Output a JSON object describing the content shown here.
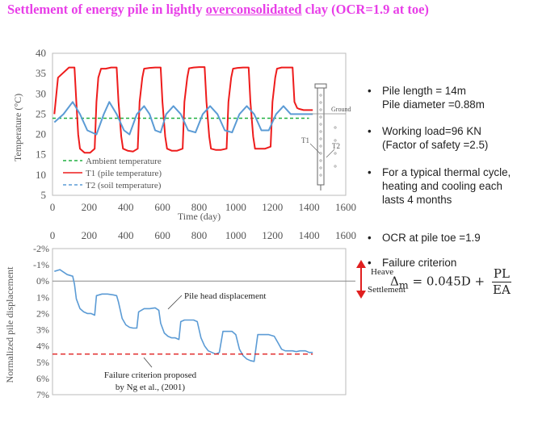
{
  "page": {
    "title_part1": "Settlement  of energy pile in lightly ",
    "title_underlined": "overconsolidated",
    "title_part2": " clay (OCR=1.9 at toe)",
    "title_color": "#e83ee8"
  },
  "bullets": [
    {
      "lines": [
        "Pile length = 14m",
        "Pile diameter =0.88m"
      ]
    },
    {
      "lines": [
        "Working load=96 KN",
        "(Factor of safety =2.5)"
      ]
    },
    {
      "lines": [
        "For a typical thermal cycle,",
        "heating and cooling each",
        "lasts 4 months"
      ]
    },
    {
      "lines": [
        "OCR at pile toe =1.9"
      ]
    },
    {
      "lines": [
        "Failure criterion"
      ]
    }
  ],
  "formula": {
    "lhs": "Δ",
    "sub": "m",
    "mid": "= 0.045D +",
    "num": "PL",
    "den": "EA"
  },
  "chart_data": [
    {
      "type": "line",
      "xlabel": "Time (day)",
      "ylabel": "Temperature (°C)",
      "xlim": [
        0,
        1600
      ],
      "ylim": [
        5,
        40
      ],
      "xticks": [
        "0",
        "200",
        "400",
        "600",
        "800",
        "1000",
        "1200",
        "1400",
        "1600"
      ],
      "yticks": [
        "5",
        "10",
        "15",
        "20",
        "25",
        "30",
        "35",
        "40"
      ],
      "legend_position": "bottom-left",
      "series": [
        {
          "name": "Ambient temperature",
          "color": "#20b040",
          "dash": "4,3",
          "x": [
            0,
            1400
          ],
          "y": [
            24,
            24
          ]
        },
        {
          "name": "T1 (pile temperature)",
          "color": "#ee1c1c",
          "dash": "",
          "x": [
            10,
            30,
            90,
            120,
            130,
            140,
            150,
            175,
            205,
            230,
            240,
            250,
            265,
            290,
            320,
            350,
            360,
            375,
            385,
            410,
            440,
            465,
            475,
            490,
            500,
            530,
            560,
            590,
            600,
            615,
            625,
            650,
            680,
            710,
            720,
            735,
            745,
            770,
            800,
            830,
            840,
            855,
            865,
            890,
            920,
            950,
            960,
            975,
            985,
            1010,
            1040,
            1070,
            1080,
            1095,
            1105,
            1130,
            1160,
            1190,
            1200,
            1215,
            1225,
            1250,
            1280,
            1310,
            1320,
            1335,
            1345,
            1370,
            1400,
            1420
          ],
          "y": [
            25,
            34,
            36.5,
            36.5,
            28,
            20,
            16.5,
            15.5,
            15.5,
            16.5,
            28,
            34,
            36.2,
            36.2,
            36.5,
            36.5,
            28,
            19.5,
            16.5,
            16,
            15.8,
            16.5,
            28,
            34,
            36.2,
            36.4,
            36.5,
            36.5,
            28,
            19.5,
            16.5,
            16,
            16,
            16.5,
            28,
            34,
            36.3,
            36.5,
            36.6,
            36.6,
            28,
            19.5,
            16.5,
            16.2,
            16.2,
            16.5,
            28,
            34,
            36.2,
            36.4,
            36.5,
            36.5,
            28,
            19.5,
            16.5,
            16.5,
            16.5,
            17,
            28,
            34,
            36.2,
            36.5,
            36.5,
            36.5,
            28,
            26.5,
            26.3,
            26,
            26,
            26
          ]
        },
        {
          "name": "T2 (soil temperature)",
          "color": "#5b9bd5",
          "dash": "",
          "x": [
            10,
            60,
            110,
            150,
            190,
            240,
            280,
            310,
            350,
            390,
            420,
            460,
            500,
            530,
            560,
            590,
            620,
            660,
            700,
            740,
            780,
            820,
            860,
            900,
            940,
            980,
            1020,
            1060,
            1100,
            1140,
            1180,
            1220,
            1260,
            1300,
            1340,
            1380,
            1420
          ],
          "y": [
            23,
            25,
            28,
            25,
            21,
            20,
            25,
            28,
            25,
            21,
            20,
            25,
            27,
            25,
            21,
            20.5,
            25,
            27,
            25,
            21,
            20.5,
            25,
            27,
            25,
            21,
            20.5,
            25,
            27,
            25,
            21,
            21,
            25,
            27,
            25,
            25,
            25,
            25
          ]
        }
      ]
    },
    {
      "type": "line",
      "xlabel": "",
      "ylabel": "Normalized pile displacement",
      "xlim": [
        0,
        1600
      ],
      "ylim": [
        -2,
        7
      ],
      "xticks": [
        "0",
        "200",
        "400",
        "600",
        "800",
        "1000",
        "1200",
        "1400",
        "1600"
      ],
      "yticks": [
        "-2%",
        "-1%",
        "0%",
        "1%",
        "2%",
        "3%",
        "4%",
        "5%",
        "6%",
        "7%"
      ],
      "series": [
        {
          "name": "Pile head displacement",
          "color": "#5b9bd5",
          "x": [
            10,
            40,
            80,
            110,
            120,
            130,
            150,
            170,
            190,
            210,
            230,
            240,
            270,
            300,
            330,
            350,
            360,
            380,
            400,
            420,
            440,
            460,
            470,
            500,
            530,
            560,
            580,
            590,
            610,
            630,
            650,
            670,
            690,
            700,
            720,
            750,
            770,
            790,
            810,
            830,
            850,
            870,
            890,
            910,
            930,
            960,
            980,
            1000,
            1020,
            1040,
            1060,
            1080,
            1100,
            1120,
            1150,
            1180,
            1210,
            1230,
            1250,
            1270,
            1290,
            1310,
            1330,
            1350,
            1380,
            1400,
            1420
          ],
          "y": [
            -0.6,
            -0.7,
            -0.4,
            -0.3,
            0.2,
            1.1,
            1.7,
            1.9,
            2.0,
            2.0,
            2.1,
            0.9,
            0.8,
            0.8,
            0.85,
            0.9,
            1.3,
            2.3,
            2.7,
            2.85,
            2.9,
            2.9,
            1.9,
            1.7,
            1.7,
            1.65,
            1.8,
            2.6,
            3.2,
            3.4,
            3.5,
            3.5,
            3.6,
            2.5,
            2.4,
            2.4,
            2.4,
            2.5,
            3.5,
            4.0,
            4.3,
            4.4,
            4.5,
            4.4,
            3.1,
            3.1,
            3.1,
            3.3,
            4.2,
            4.6,
            4.8,
            4.9,
            4.95,
            3.3,
            3.3,
            3.3,
            3.4,
            3.8,
            4.2,
            4.3,
            4.3,
            4.3,
            4.35,
            4.3,
            4.3,
            4.4,
            4.4
          ]
        },
        {
          "name": "Failure criterion",
          "color": "#e02020",
          "dash": "6,4",
          "x": [
            0,
            1420
          ],
          "y": [
            4.5,
            4.5
          ]
        }
      ],
      "annotations": [
        {
          "text": "Pile head displacement"
        },
        {
          "text": "Failure criterion proposed"
        },
        {
          "text": "by Ng et al., (2001)"
        },
        {
          "text": "Heave"
        },
        {
          "text": "Settlement"
        }
      ]
    }
  ],
  "diagram": {
    "ground_label": "Ground",
    "t1_label": "T1",
    "t2_label": "T2"
  }
}
